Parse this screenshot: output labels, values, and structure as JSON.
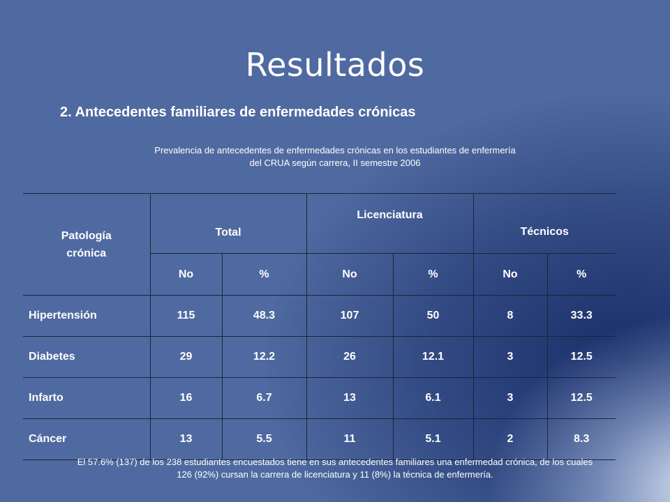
{
  "slide": {
    "title": "Resultados",
    "subtitle": "2. Antecedentes familiares de enfermedades crónicas",
    "caption_line1": "Prevalencia de antecedentes de enfermedades crónicas en los estudiantes de enfermería",
    "caption_line2": "del CRUA según carrera, II semestre 2006",
    "footnote": "El 57.6% (137) de los 238 estudiantes encuestados tiene en sus antecedentes familiares una enfermedad crónica,  de los cuales 126 (92%) cursan la carrera de licenciatura y 11 (8%) la técnica de enfermería."
  },
  "table": {
    "patologia_line1": "Patología",
    "patologia_line2": "crónica",
    "group_total": "Total",
    "group_licenciatura": "Licenciatura",
    "group_tecnicos": "Técnicos",
    "sub_no": "No",
    "sub_pct": "%",
    "rows": [
      {
        "label": "Hipertensión",
        "total_no": "115",
        "total_pct": "48.3",
        "lic_no": "107",
        "lic_pct": "50",
        "tec_no": "8",
        "tec_pct": "33.3"
      },
      {
        "label": "Diabetes",
        "total_no": "29",
        "total_pct": "12.2",
        "lic_no": "26",
        "lic_pct": "12.1",
        "tec_no": "3",
        "tec_pct": "12.5"
      },
      {
        "label": "Infarto",
        "total_no": "16",
        "total_pct": "6.7",
        "lic_no": "13",
        "lic_pct": "6.1",
        "tec_no": "3",
        "tec_pct": "12.5"
      },
      {
        "label": "Cáncer",
        "total_no": "13",
        "total_pct": "5.5",
        "lic_no": "11",
        "lic_pct": "5.1",
        "tec_no": "2",
        "tec_pct": "8.3"
      }
    ]
  },
  "colors": {
    "background": "#4f6aa0",
    "text": "#ffffff",
    "rule": "#1b2438"
  }
}
